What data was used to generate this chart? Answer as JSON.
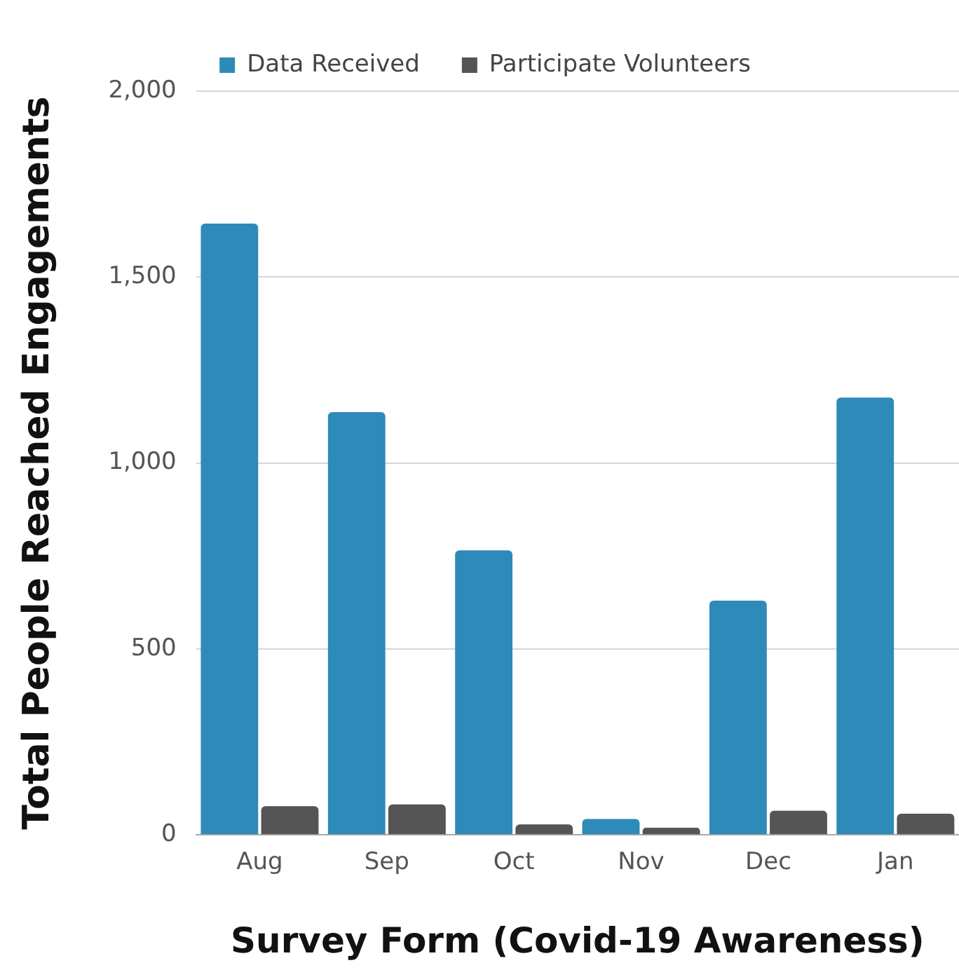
{
  "chart_data": {
    "type": "bar",
    "xlabel": "Survey Form (Covid-19 Awareness)",
    "ylabel": "Total People Reached Engagements",
    "categories": [
      "Aug",
      "Sep",
      "Oct",
      "Nov",
      "Dec",
      "Jan"
    ],
    "series": [
      {
        "name": "Data Received",
        "color": "#2e8ab8",
        "values": [
          1644,
          1137,
          765,
          43,
          630,
          1176
        ]
      },
      {
        "name": "Participate Volunteers",
        "color": "#555555",
        "values": [
          77,
          82,
          28,
          19,
          65,
          57
        ]
      }
    ],
    "ylim": [
      0,
      2000
    ],
    "yticks": [
      {
        "value": 0,
        "label": "0"
      },
      {
        "value": 500,
        "label": "500"
      },
      {
        "value": 1000,
        "label": "1,000"
      },
      {
        "value": 1500,
        "label": "1,500"
      },
      {
        "value": 2000,
        "label": "2,000"
      }
    ],
    "grid": "y",
    "legend": "top"
  }
}
